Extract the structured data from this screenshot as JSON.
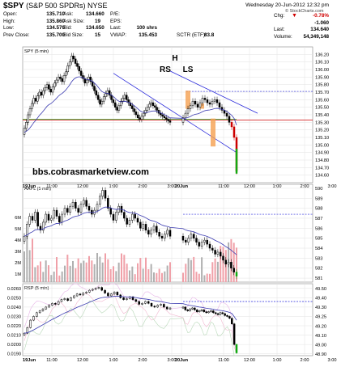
{
  "header": {
    "symbol": "$SPY",
    "name": "(S&P 500 SPDRs) NYSE",
    "date": "Wednesday 20-Jun-2012 12:32 pm",
    "logo": "© StockCharts.com",
    "quote_rows": [
      [
        {
          "l": "Open:",
          "v": "135.710"
        },
        {
          "l": "Ask:",
          "v": "134.660"
        },
        {
          "l": "P/E:",
          "v": ""
        }
      ],
      [
        {
          "l": "High:",
          "v": "135.860"
        },
        {
          "l": "Ask Size:",
          "v": "19"
        },
        {
          "l": "EPS:",
          "v": ""
        }
      ],
      [
        {
          "l": "Low:",
          "v": "134.570"
        },
        {
          "l": "Bid:",
          "v": "134.650"
        },
        {
          "l": "Last:",
          "v": "100 shrs"
        }
      ],
      [
        {
          "l": "Prev Close:",
          "v": "135.700"
        },
        {
          "l": "Bid Size:",
          "v": "15"
        },
        {
          "l": "VWAP:",
          "v": "135.453"
        }
      ]
    ],
    "sctr": {
      "l": "SCTR (ETF):",
      "v": "83.8"
    },
    "right_quote": [
      {
        "l": "Chg:",
        "v": "-0.78%",
        "red": true,
        "arrow": "▼"
      },
      {
        "l": "",
        "v": "-1.060",
        "red": false
      },
      {
        "l": "Last:",
        "v": "134.640",
        "red": false
      },
      {
        "l": "Volume:",
        "v": "54,349,148",
        "red": false
      }
    ]
  },
  "chart_data": [
    {
      "type": "candlestick",
      "panel_label": "SPY (5 min)",
      "ylim": [
        134.5,
        136.3
      ],
      "y_ticks": [
        134.6,
        134.7,
        134.8,
        134.9,
        135.0,
        135.1,
        135.2,
        135.3,
        135.4,
        135.5,
        135.6,
        135.7,
        135.8,
        135.9,
        136.0,
        136.1,
        136.2
      ],
      "x_ticks": [
        "19Jun",
        "11:00",
        "12:00",
        "1:00",
        "2:00",
        "3:00",
        "20Jun",
        "11:00",
        "12:00",
        "1:00",
        "2:00",
        "3:00"
      ],
      "watermark": "bbs.cobrasmarketview.com",
      "annotations": [
        "H",
        "RS",
        "LS"
      ],
      "prev_close_line": 135.33,
      "resistance_line": 135.71,
      "closes_day1": [
        135.22,
        135.3,
        135.4,
        135.48,
        135.55,
        135.62,
        135.58,
        135.65,
        135.7,
        135.66,
        135.72,
        135.76,
        135.8,
        135.74,
        135.7,
        135.77,
        135.82,
        135.86,
        135.9,
        135.88,
        135.84,
        135.92,
        135.97,
        136.05,
        136.1,
        136.18,
        136.14,
        136.08,
        136.04,
        135.98,
        135.92,
        135.88,
        135.82,
        135.86,
        135.9,
        135.84,
        135.78,
        135.72,
        135.66,
        135.6,
        135.54,
        135.58,
        135.64,
        135.68,
        135.72,
        135.66,
        135.6,
        135.56,
        135.5,
        135.46,
        135.52,
        135.58,
        135.62,
        135.66,
        135.6,
        135.56,
        135.52,
        135.48,
        135.44,
        135.4,
        135.36,
        135.34,
        135.38,
        135.42,
        135.46,
        135.5,
        135.54,
        135.56,
        135.52,
        135.5,
        135.46,
        135.42,
        135.4,
        135.38,
        135.36,
        135.34,
        135.32,
        135.3
      ],
      "closes_day2": [
        135.36,
        135.42,
        135.48,
        135.52,
        135.58,
        135.54,
        135.5,
        135.56,
        135.62,
        135.6,
        135.56,
        135.54,
        135.58,
        135.6,
        135.56,
        135.5,
        135.46,
        135.42,
        135.38,
        135.3,
        135.24,
        135.1,
        134.65
      ]
    },
    {
      "type": "candlestick",
      "panel_label": "AAPL (5 min)",
      "ylim": [
        580.6,
        590.4
      ],
      "y_ticks": [
        581,
        582,
        583,
        584,
        585,
        586,
        587,
        588,
        589,
        590
      ],
      "volume_ticks": [
        "1M",
        "2M",
        "3M",
        "4M",
        "5M",
        "6M"
      ],
      "resistance_line": 587.4,
      "closes": [
        585.2,
        586.4,
        587.2,
        586.8,
        587.6,
        586.2,
        585.8,
        586.6,
        587.4,
        586.8,
        587.0,
        587.8,
        587.2,
        586.6,
        587.4,
        588.0,
        587.6,
        588.2,
        588.6,
        588.0,
        587.6,
        588.4,
        588.8,
        588.2,
        587.8,
        587.4,
        587.8,
        588.4,
        589.2,
        589.8,
        589.0,
        588.0,
        587.4,
        586.8,
        587.6,
        588.2,
        587.6,
        587.0,
        586.4,
        586.8,
        587.4,
        587.0,
        586.6,
        586.0,
        586.4,
        585.8,
        585.4,
        585.8,
        586.2,
        585.6,
        585.2,
        585.0,
        585.4,
        585.8,
        585.2,
        584.8,
        584.6,
        585.0,
        585.4,
        585.0,
        584.6,
        584.2,
        584.6,
        584.8,
        584.4,
        584.0,
        583.8,
        583.4,
        583.6,
        583.2,
        582.8,
        582.4,
        582.6,
        582.0,
        581.6,
        581.2
      ]
    },
    {
      "type": "line",
      "panel_label": "RSP (5 min)",
      "ylim": [
        0.0188,
        0.0265
      ],
      "y_ticks": [
        0.019,
        0.02,
        0.021,
        0.022,
        0.023,
        0.024,
        0.025,
        0.026
      ],
      "right_ticks": [
        48.9,
        49.0,
        49.1,
        49.2,
        49.25,
        49.3,
        49.4,
        49.5
      ],
      "closes": [
        0.0212,
        0.0218,
        0.0226,
        0.023,
        0.0234,
        0.0236,
        0.0238,
        0.024,
        0.0242,
        0.0244,
        0.0243,
        0.0246,
        0.0248,
        0.0249,
        0.0247,
        0.025,
        0.0252,
        0.0254,
        0.0253,
        0.0255,
        0.0256,
        0.0258,
        0.0259,
        0.026,
        0.0261,
        0.0258,
        0.0255,
        0.0252,
        0.0254,
        0.0256,
        0.0253,
        0.025,
        0.0248,
        0.0249,
        0.0251,
        0.0248,
        0.0246,
        0.0243,
        0.0244,
        0.0246,
        0.0244,
        0.0241,
        0.024,
        0.0242,
        0.0243,
        0.024,
        0.0238,
        0.0239,
        0.024,
        0.0237,
        0.0236,
        0.0238,
        0.0239,
        0.0237,
        0.0235,
        0.0236,
        0.0237,
        0.0235,
        0.0234,
        0.0235,
        0.0236,
        0.0234,
        0.0233,
        0.0232,
        0.0234,
        0.0233,
        0.0231,
        0.023,
        0.0228,
        0.0222,
        0.02,
        0.0191
      ]
    }
  ]
}
